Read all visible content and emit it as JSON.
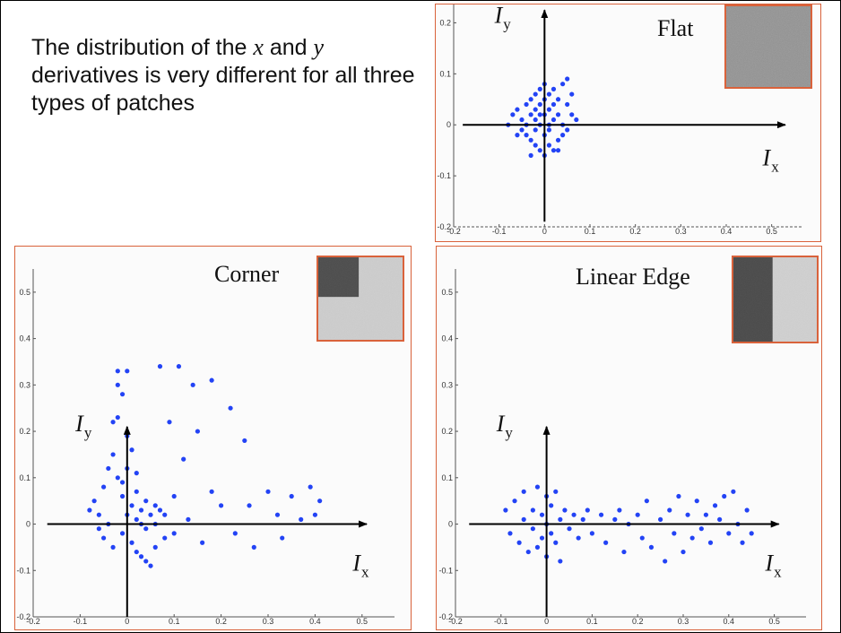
{
  "caption": {
    "part1": "The distribution of the ",
    "x": "x",
    "part2": " and ",
    "y": "y",
    "part3": " derivatives is very different for all three types of patches"
  },
  "colors": {
    "points": "#2343f5",
    "frame": "#d9623b",
    "axis": "#000000"
  },
  "chart_data": [
    {
      "type": "scatter",
      "title": "Flat",
      "xlabel_main": "I",
      "xlabel_sub": "x",
      "ylabel_main": "I",
      "ylabel_sub": "y",
      "xlim": [
        -0.2,
        0.55
      ],
      "ylim": [
        -0.2,
        0.25
      ],
      "xticks": [
        -0.2,
        -0.1,
        0,
        0.1,
        0.2,
        0.3,
        0.4,
        0.5
      ],
      "yticks": [
        -0.2,
        -0.1,
        0,
        0.1,
        0.2
      ],
      "xticklabels": [
        "-0.2",
        "-0.1",
        "0",
        "0.1",
        "0.2",
        "0.3",
        "0.4",
        "0.5"
      ],
      "yticklabels": [
        "-0.2",
        "-0.1",
        "0",
        "0.1",
        "0.2"
      ],
      "thumbnail": "flat",
      "points": [
        [
          -0.06,
          0.03
        ],
        [
          -0.05,
          0.01
        ],
        [
          -0.05,
          -0.01
        ],
        [
          -0.04,
          0.04
        ],
        [
          -0.04,
          -0.02
        ],
        [
          -0.04,
          0.0
        ],
        [
          -0.03,
          0.05
        ],
        [
          -0.03,
          -0.03
        ],
        [
          -0.03,
          0.02
        ],
        [
          -0.02,
          0.06
        ],
        [
          -0.02,
          -0.04
        ],
        [
          -0.02,
          0.01
        ],
        [
          -0.02,
          0.03
        ],
        [
          -0.01,
          0.07
        ],
        [
          -0.01,
          -0.05
        ],
        [
          -0.01,
          0.0
        ],
        [
          -0.01,
          0.04
        ],
        [
          0.0,
          0.08
        ],
        [
          0.0,
          -0.06
        ],
        [
          0.0,
          0.02
        ],
        [
          0.0,
          -0.02
        ],
        [
          0.01,
          0.06
        ],
        [
          0.01,
          -0.04
        ],
        [
          0.01,
          0.03
        ],
        [
          0.01,
          -0.01
        ],
        [
          0.02,
          0.07
        ],
        [
          0.02,
          -0.05
        ],
        [
          0.02,
          0.01
        ],
        [
          0.03,
          0.05
        ],
        [
          0.03,
          -0.03
        ],
        [
          0.03,
          0.02
        ],
        [
          0.04,
          0.08
        ],
        [
          0.04,
          -0.02
        ],
        [
          0.04,
          0.0
        ],
        [
          0.05,
          0.09
        ],
        [
          0.05,
          0.04
        ],
        [
          0.05,
          -0.01
        ],
        [
          0.06,
          0.06
        ],
        [
          0.06,
          0.02
        ],
        [
          0.07,
          0.01
        ],
        [
          -0.07,
          0.02
        ],
        [
          -0.08,
          0.0
        ],
        [
          -0.06,
          -0.02
        ],
        [
          -0.03,
          -0.06
        ],
        [
          0.0,
          0.05
        ],
        [
          0.02,
          0.04
        ],
        [
          -0.02,
          -0.01
        ],
        [
          0.01,
          0.0
        ],
        [
          -0.01,
          0.02
        ],
        [
          0.03,
          -0.05
        ]
      ]
    },
    {
      "type": "scatter",
      "title": "Corner",
      "xlabel_main": "I",
      "xlabel_sub": "x",
      "ylabel_main": "I",
      "ylabel_sub": "y",
      "xlim": [
        -0.2,
        0.55
      ],
      "ylim": [
        -0.2,
        0.55
      ],
      "xticks": [
        -0.2,
        -0.1,
        0,
        0.1,
        0.2,
        0.3,
        0.4,
        0.5
      ],
      "yticks": [
        -0.2,
        -0.1,
        0,
        0.1,
        0.2,
        0.3,
        0.4,
        0.5
      ],
      "xticklabels": [
        "-0.2",
        "-0.1",
        "0",
        "0.1",
        "0.2",
        "0.3",
        "0.4",
        "0.5"
      ],
      "yticklabels": [
        "-0.2",
        "-0.1",
        "0",
        "0.1",
        "0.2",
        "0.3",
        "0.4",
        "0.5"
      ],
      "thumbnail": "corner",
      "points": [
        [
          -0.07,
          0.05
        ],
        [
          -0.06,
          0.02
        ],
        [
          -0.05,
          -0.03
        ],
        [
          -0.05,
          0.08
        ],
        [
          -0.04,
          0.0
        ],
        [
          -0.04,
          0.12
        ],
        [
          -0.03,
          -0.05
        ],
        [
          -0.03,
          0.15
        ],
        [
          -0.03,
          0.22
        ],
        [
          -0.02,
          0.3
        ],
        [
          -0.02,
          0.33
        ],
        [
          -0.02,
          0.23
        ],
        [
          -0.02,
          0.1
        ],
        [
          -0.01,
          0.06
        ],
        [
          -0.01,
          -0.02
        ],
        [
          -0.01,
          0.28
        ],
        [
          0.0,
          0.33
        ],
        [
          0.0,
          0.12
        ],
        [
          0.0,
          0.02
        ],
        [
          0.01,
          -0.04
        ],
        [
          0.01,
          0.04
        ],
        [
          0.02,
          0.07
        ],
        [
          0.02,
          -0.06
        ],
        [
          0.02,
          0.01
        ],
        [
          0.03,
          0.03
        ],
        [
          0.03,
          -0.07
        ],
        [
          0.04,
          0.05
        ],
        [
          0.04,
          -0.08
        ],
        [
          0.05,
          0.02
        ],
        [
          0.05,
          -0.09
        ],
        [
          0.06,
          -0.05
        ],
        [
          0.06,
          0.0
        ],
        [
          0.07,
          0.34
        ],
        [
          0.07,
          0.03
        ],
        [
          0.08,
          -0.03
        ],
        [
          0.09,
          0.22
        ],
        [
          0.1,
          0.06
        ],
        [
          0.1,
          -0.02
        ],
        [
          0.11,
          0.34
        ],
        [
          0.12,
          0.14
        ],
        [
          0.13,
          0.01
        ],
        [
          0.14,
          0.3
        ],
        [
          0.15,
          0.2
        ],
        [
          0.16,
          -0.04
        ],
        [
          0.18,
          0.31
        ],
        [
          0.18,
          0.07
        ],
        [
          0.2,
          0.04
        ],
        [
          0.22,
          0.25
        ],
        [
          0.23,
          -0.02
        ],
        [
          0.25,
          0.18
        ],
        [
          0.26,
          0.04
        ],
        [
          0.27,
          -0.05
        ],
        [
          0.3,
          0.07
        ],
        [
          0.32,
          0.02
        ],
        [
          0.33,
          -0.03
        ],
        [
          0.35,
          0.06
        ],
        [
          0.37,
          0.01
        ],
        [
          0.39,
          0.08
        ],
        [
          0.4,
          0.02
        ],
        [
          0.41,
          0.05
        ],
        [
          -0.08,
          0.03
        ],
        [
          -0.06,
          -0.01
        ],
        [
          0.0,
          0.19
        ],
        [
          0.01,
          0.16
        ],
        [
          -0.01,
          0.09
        ],
        [
          0.02,
          0.11
        ],
        [
          0.03,
          0.0
        ],
        [
          0.04,
          -0.01
        ],
        [
          0.06,
          0.04
        ],
        [
          0.08,
          0.02
        ]
      ]
    },
    {
      "type": "scatter",
      "title": "Linear Edge",
      "xlabel_main": "I",
      "xlabel_sub": "x",
      "ylabel_main": "I",
      "ylabel_sub": "y",
      "xlim": [
        -0.2,
        0.55
      ],
      "ylim": [
        -0.2,
        0.55
      ],
      "xticks": [
        -0.2,
        -0.1,
        0,
        0.1,
        0.2,
        0.3,
        0.4,
        0.5
      ],
      "yticks": [
        -0.2,
        -0.1,
        0,
        0.1,
        0.2,
        0.3,
        0.4,
        0.5
      ],
      "xticklabels": [
        "-0.2",
        "-0.1",
        "0",
        "0.1",
        "0.2",
        "0.3",
        "0.4",
        "0.5"
      ],
      "yticklabels": [
        "-0.2",
        "-0.1",
        "0",
        "0.1",
        "0.2",
        "0.3",
        "0.4",
        "0.5"
      ],
      "thumbnail": "edge",
      "points": [
        [
          -0.09,
          0.03
        ],
        [
          -0.08,
          -0.02
        ],
        [
          -0.07,
          0.05
        ],
        [
          -0.06,
          -0.04
        ],
        [
          -0.05,
          0.01
        ],
        [
          -0.05,
          0.07
        ],
        [
          -0.04,
          -0.06
        ],
        [
          -0.03,
          0.03
        ],
        [
          -0.03,
          -0.01
        ],
        [
          -0.02,
          0.08
        ],
        [
          -0.02,
          -0.05
        ],
        [
          -0.01,
          0.02
        ],
        [
          -0.01,
          -0.03
        ],
        [
          0.0,
          0.06
        ],
        [
          0.0,
          -0.07
        ],
        [
          0.0,
          0.0
        ],
        [
          0.01,
          0.04
        ],
        [
          0.01,
          -0.02
        ],
        [
          0.02,
          0.07
        ],
        [
          0.02,
          -0.04
        ],
        [
          0.03,
          0.01
        ],
        [
          0.03,
          -0.08
        ],
        [
          0.04,
          0.03
        ],
        [
          0.05,
          -0.01
        ],
        [
          0.06,
          0.02
        ],
        [
          0.07,
          -0.03
        ],
        [
          0.08,
          0.01
        ],
        [
          0.09,
          0.03
        ],
        [
          0.1,
          -0.02
        ],
        [
          0.12,
          0.02
        ],
        [
          0.13,
          -0.04
        ],
        [
          0.15,
          0.01
        ],
        [
          0.16,
          0.03
        ],
        [
          0.17,
          -0.06
        ],
        [
          0.18,
          0.0
        ],
        [
          0.2,
          0.02
        ],
        [
          0.21,
          -0.03
        ],
        [
          0.22,
          0.05
        ],
        [
          0.23,
          -0.05
        ],
        [
          0.25,
          0.01
        ],
        [
          0.26,
          -0.08
        ],
        [
          0.27,
          0.03
        ],
        [
          0.28,
          -0.02
        ],
        [
          0.29,
          0.06
        ],
        [
          0.3,
          -0.06
        ],
        [
          0.31,
          0.02
        ],
        [
          0.32,
          -0.03
        ],
        [
          0.33,
          0.05
        ],
        [
          0.34,
          -0.01
        ],
        [
          0.35,
          0.02
        ],
        [
          0.36,
          -0.04
        ],
        [
          0.37,
          0.04
        ],
        [
          0.38,
          0.01
        ],
        [
          0.39,
          0.06
        ],
        [
          0.4,
          -0.02
        ],
        [
          0.41,
          0.07
        ],
        [
          0.42,
          0.0
        ],
        [
          0.43,
          -0.04
        ],
        [
          0.44,
          0.03
        ],
        [
          0.45,
          -0.02
        ]
      ]
    }
  ]
}
